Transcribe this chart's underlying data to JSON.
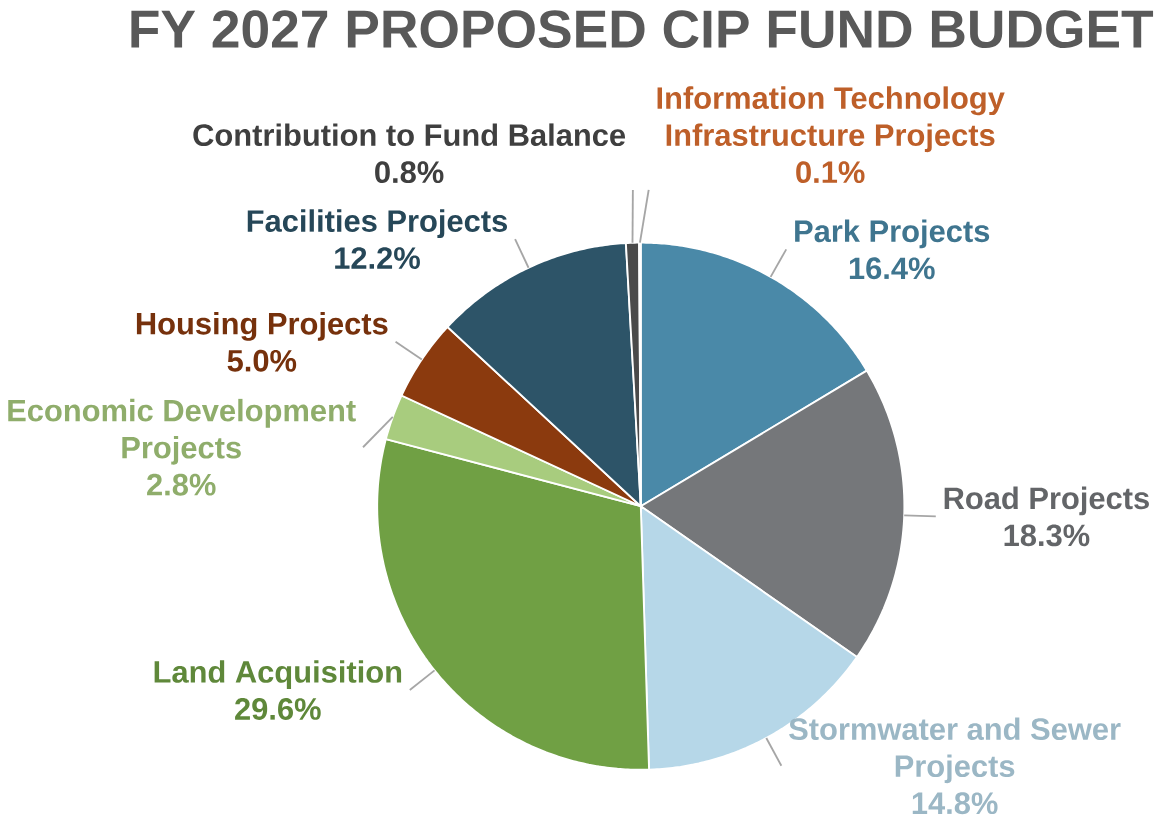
{
  "chart_data": {
    "type": "pie",
    "title": "FY 2027 PROPOSED CIP FUND BUDGET",
    "categories": [
      "Park Projects",
      "Road Projects",
      "Stormwater and Sewer Projects",
      "Land Acquisition",
      "Economic Development Projects",
      "Housing Projects",
      "Facilities Projects",
      "Contribution to Fund Balance",
      "Information Technology Infrastructure Projects"
    ],
    "values": [
      16.4,
      18.3,
      14.8,
      29.6,
      2.8,
      5.0,
      12.2,
      0.8,
      0.1
    ],
    "value_labels": [
      "16.4%",
      "18.3%",
      "14.8%",
      "29.6%",
      "2.8%",
      "5.0%",
      "12.2%",
      "0.8%",
      "0.1%"
    ],
    "colors": [
      "#4a89a8",
      "#75777a",
      "#b6d7e8",
      "#70a044",
      "#a8cc7e",
      "#8b3a0e",
      "#2d5468",
      "#4a4a4a",
      "#e07030"
    ]
  }
}
